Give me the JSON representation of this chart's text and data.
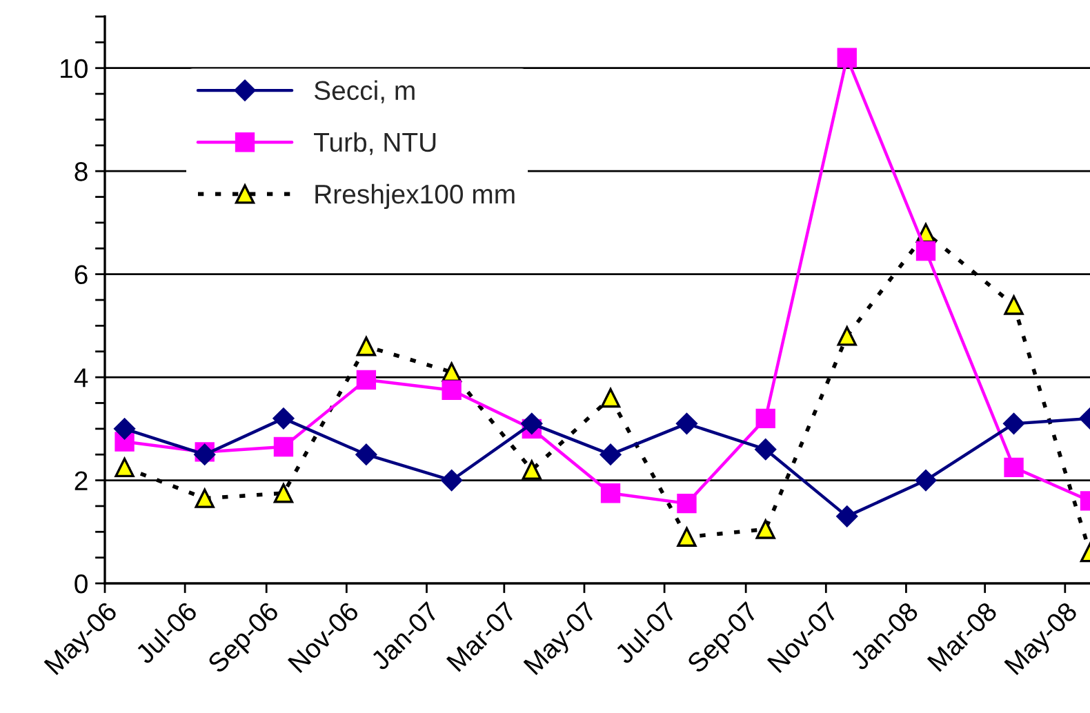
{
  "chart_data": {
    "type": "line",
    "x": [
      "2006-05-16",
      "2006-07-16",
      "2006-09-14",
      "2006-11-16",
      "2007-01-20",
      "2007-03-22",
      "2007-05-21",
      "2007-07-18",
      "2007-09-16",
      "2007-11-17",
      "2008-01-16",
      "2008-03-23",
      "2008-05-20"
    ],
    "series": [
      {
        "name": "Secci, m",
        "color": "#000080",
        "marker": "diamond",
        "line_style": "solid",
        "values": [
          3.0,
          2.5,
          3.2,
          2.5,
          2.0,
          3.1,
          2.5,
          3.1,
          2.6,
          1.3,
          2.0,
          3.1,
          3.2
        ]
      },
      {
        "name": "Turb, NTU",
        "color": "#ff00ff",
        "marker": "square",
        "line_style": "solid",
        "values": [
          2.75,
          2.55,
          2.65,
          3.95,
          3.75,
          3.0,
          1.75,
          1.55,
          3.2,
          10.2,
          6.45,
          2.25,
          1.6
        ]
      },
      {
        "name": "Rreshjex100 mm",
        "color": "#ffff00",
        "marker": "triangle",
        "line_style": "dotted",
        "values": [
          2.25,
          1.65,
          1.75,
          4.6,
          4.1,
          2.2,
          3.6,
          0.9,
          1.05,
          4.8,
          6.8,
          5.4,
          0.6
        ]
      }
    ],
    "xlim": [
      "2006-05-01",
      "2008-05-20"
    ],
    "xticks": [
      {
        "value": "2006-05-01",
        "label": "May-06"
      },
      {
        "value": "2006-07-01",
        "label": "Jul-06"
      },
      {
        "value": "2006-09-01",
        "label": "Sep-06"
      },
      {
        "value": "2006-11-01",
        "label": "Nov-06"
      },
      {
        "value": "2007-01-01",
        "label": "Jan-07"
      },
      {
        "value": "2007-03-01",
        "label": "Mar-07"
      },
      {
        "value": "2007-05-01",
        "label": "May-07"
      },
      {
        "value": "2007-07-01",
        "label": "Jul-07"
      },
      {
        "value": "2007-09-01",
        "label": "Sep-07"
      },
      {
        "value": "2007-11-01",
        "label": "Nov-07"
      },
      {
        "value": "2008-01-01",
        "label": "Jan-08"
      },
      {
        "value": "2008-03-01",
        "label": "Mar-08"
      },
      {
        "value": "2008-05-01",
        "label": "May-08"
      }
    ],
    "ylim": [
      0,
      11
    ],
    "yticks": [
      0,
      {
        "value": 0.5,
        "label": null
      },
      {
        "value": 1,
        "label": null
      },
      {
        "value": 1.5,
        "label": null
      },
      2,
      {
        "value": 2.5,
        "label": null
      },
      {
        "value": 3,
        "label": null
      },
      {
        "value": 3.5,
        "label": null
      },
      4,
      {
        "value": 4.5,
        "label": null
      },
      {
        "value": 5,
        "label": null
      },
      {
        "value": 5.5,
        "label": null
      },
      6,
      {
        "value": 6.5,
        "label": null
      },
      {
        "value": 7,
        "label": null
      },
      {
        "value": 7.5,
        "label": null
      },
      8,
      {
        "value": 8.5,
        "label": null
      },
      {
        "value": 9,
        "label": null
      },
      {
        "value": 9.5,
        "label": null
      },
      10,
      {
        "value": 10.5,
        "label": null
      },
      {
        "value": 11,
        "label": null
      }
    ],
    "grid": "y",
    "legend": "top left"
  }
}
